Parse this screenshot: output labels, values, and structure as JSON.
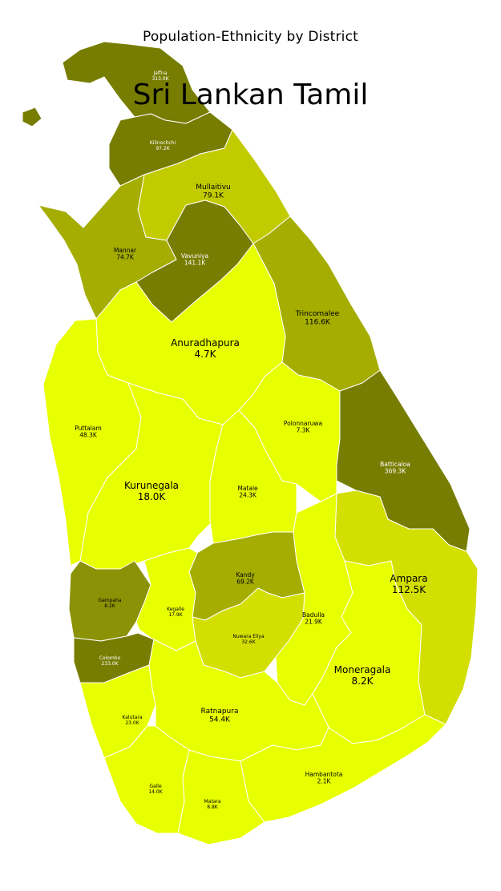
{
  "titles": {
    "subtitle": "Population-Ethnicity by District",
    "main": "Sri Lankan Tamil"
  },
  "colors": {
    "very_high": "#777d00",
    "high": "#8c9205",
    "medium_high": "#a4ad00",
    "medium": "#c2cb00",
    "medium_low": "#d3df00",
    "low": "#e8ff00",
    "border": "#ffffff"
  },
  "districts": [
    {
      "name": "Jaffna",
      "value": "313.0K",
      "level": "very_high"
    },
    {
      "name": "Kilinochchi",
      "value": "97.2K",
      "level": "very_high"
    },
    {
      "name": "Mullaitivu",
      "value": "79.1K",
      "level": "medium"
    },
    {
      "name": "Mannar",
      "value": "74.7K",
      "level": "medium_high"
    },
    {
      "name": "Vavuniya",
      "value": "141.1K",
      "level": "very_high"
    },
    {
      "name": "Trincomalee",
      "value": "116.6K",
      "level": "medium_high"
    },
    {
      "name": "Anuradhapura",
      "value": "4.7K",
      "level": "low"
    },
    {
      "name": "Puttalam",
      "value": "48.3K",
      "level": "low"
    },
    {
      "name": "Polonnaruwa",
      "value": "7.3K",
      "level": "low"
    },
    {
      "name": "Batticaloa",
      "value": "369.3K",
      "level": "very_high"
    },
    {
      "name": "Kurunegala",
      "value": "18.0K",
      "level": "low"
    },
    {
      "name": "Matale",
      "value": "24.3K",
      "level": "low"
    },
    {
      "name": "Ampara",
      "value": "112.5K",
      "level": "medium_low"
    },
    {
      "name": "Kandy",
      "value": "69.2K",
      "level": "medium_high"
    },
    {
      "name": "Gampaha",
      "value": "8.2K",
      "level": "high"
    },
    {
      "name": "Kegalle",
      "value": "17.9K",
      "level": "low"
    },
    {
      "name": "Badulla",
      "value": "21.9K",
      "level": "low"
    },
    {
      "name": "Nuwara Eliya",
      "value": "32.6K",
      "level": "medium_low"
    },
    {
      "name": "Colombo",
      "value": "233.0K",
      "level": "very_high"
    },
    {
      "name": "Moneragala",
      "value": "8.2K",
      "level": "low"
    },
    {
      "name": "Kalutara",
      "value": "23.0K",
      "level": "low"
    },
    {
      "name": "Ratnapura",
      "value": "54.4K",
      "level": "low"
    },
    {
      "name": "Galle",
      "value": "14.0K",
      "level": "low"
    },
    {
      "name": "Hambantota",
      "value": "2.1K",
      "level": "low"
    },
    {
      "name": "Matara",
      "value": "8.8K",
      "level": "low"
    }
  ]
}
